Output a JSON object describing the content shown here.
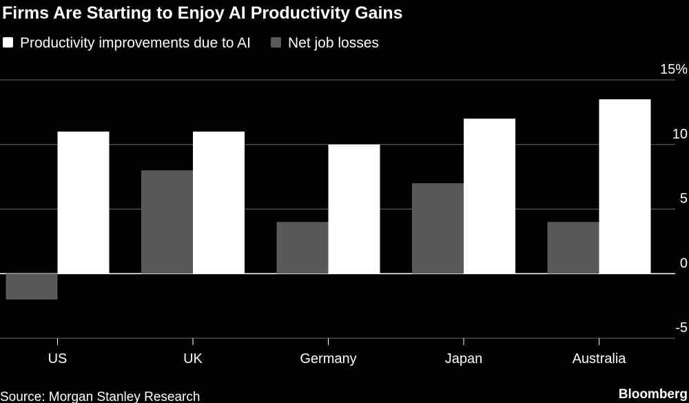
{
  "chart_data": {
    "type": "bar",
    "title": "Firms Are Starting to Enjoy AI Productivity Gains",
    "categories": [
      "US",
      "UK",
      "Germany",
      "Japan",
      "Australia"
    ],
    "series": [
      {
        "name": "Net job losses",
        "values": [
          -2,
          8,
          4,
          7,
          4
        ],
        "color": "#595959"
      },
      {
        "name": "Productivity improvements due to AI",
        "values": [
          11,
          11,
          10,
          12,
          13.5
        ],
        "color": "#ffffff"
      }
    ],
    "legend_order": [
      1,
      0
    ],
    "ylim": [
      -5,
      15
    ],
    "yticks": [
      -5,
      0,
      5,
      10,
      15
    ],
    "ytick_labels": [
      "-5",
      "0",
      "5",
      "10",
      "15%"
    ],
    "y_axis_side": "right",
    "grid": true,
    "legend_position": "top-left",
    "source": "Source: Morgan Stanley Research",
    "brand": "Bloomberg"
  }
}
